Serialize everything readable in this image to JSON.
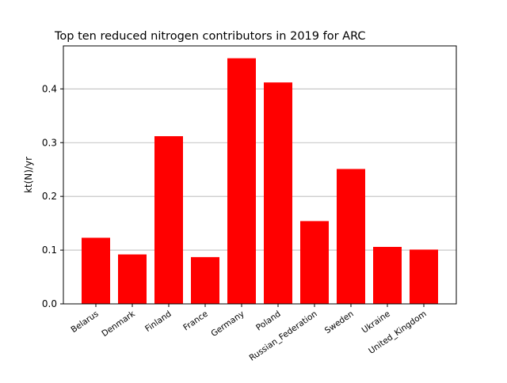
{
  "chart_data": {
    "type": "bar",
    "title": "Top ten reduced nitrogen contributors in 2019 for ARC",
    "xlabel": "",
    "ylabel": "kt(N)/yr",
    "categories": [
      "Belarus",
      "Denmark",
      "Finland",
      "France",
      "Germany",
      "Poland",
      "Russian_Federation",
      "Sweden",
      "Ukraine",
      "United_Kingdom"
    ],
    "values": [
      0.123,
      0.092,
      0.312,
      0.087,
      0.457,
      0.412,
      0.154,
      0.251,
      0.106,
      0.101
    ],
    "ylim": [
      0,
      0.48
    ],
    "yticks": [
      0.0,
      0.1,
      0.2,
      0.3,
      0.4
    ],
    "ytick_labels": [
      "0.0",
      "0.1",
      "0.2",
      "0.3",
      "0.4"
    ],
    "grid": "y-major",
    "legend": "none",
    "bar_color": "#ff0000",
    "grid_color": "#b0b0b0"
  }
}
